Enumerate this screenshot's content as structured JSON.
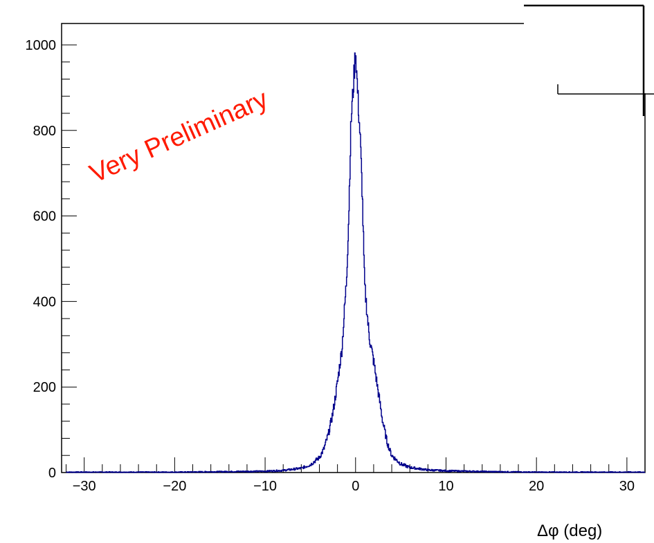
{
  "chart_data": {
    "type": "histogram",
    "xlabel": "Δφ (deg)",
    "ylabel": "",
    "title": "",
    "xlim": [
      -32.5,
      32
    ],
    "ylim": [
      0,
      1050
    ],
    "x_ticks": [
      -30,
      -20,
      -10,
      0,
      10,
      20,
      30
    ],
    "x_tick_labels": [
      "−30",
      "−20",
      "−10",
      "0",
      "10",
      "20",
      "30"
    ],
    "y_ticks": [
      0,
      200,
      400,
      600,
      800,
      1000
    ],
    "y_tick_labels": [
      "0",
      "200",
      "400",
      "600",
      "800",
      "1000"
    ],
    "series": [
      {
        "name": "",
        "color": "#00008b",
        "points": [
          [
            -32,
            1
          ],
          [
            -20,
            1
          ],
          [
            -15,
            2
          ],
          [
            -10,
            3
          ],
          [
            -8,
            5
          ],
          [
            -6,
            10
          ],
          [
            -5,
            18
          ],
          [
            -4,
            35
          ],
          [
            -3.5,
            55
          ],
          [
            -3,
            90
          ],
          [
            -2.5,
            140
          ],
          [
            -2,
            210
          ],
          [
            -1.5,
            290
          ],
          [
            -1,
            450
          ],
          [
            -0.75,
            600
          ],
          [
            -0.5,
            820
          ],
          [
            -0.25,
            900
          ],
          [
            0,
            990
          ],
          [
            0.25,
            880
          ],
          [
            0.5,
            790
          ],
          [
            0.75,
            650
          ],
          [
            1,
            440
          ],
          [
            1.5,
            320
          ],
          [
            2,
            260
          ],
          [
            2.5,
            190
          ],
          [
            3,
            120
          ],
          [
            3.5,
            70
          ],
          [
            4,
            40
          ],
          [
            5,
            20
          ],
          [
            6,
            12
          ],
          [
            8,
            6
          ],
          [
            10,
            4
          ],
          [
            15,
            2
          ],
          [
            20,
            1
          ],
          [
            32,
            1
          ]
        ]
      }
    ],
    "annotations": [
      {
        "text": "Very Preliminary",
        "color": "#ff1a00",
        "rotation_deg": -24
      }
    ]
  }
}
